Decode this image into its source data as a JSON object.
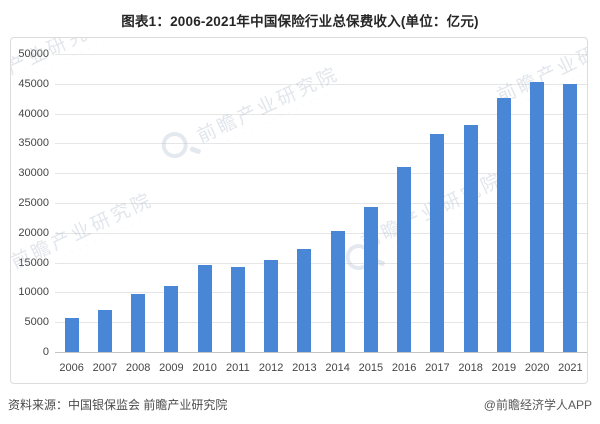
{
  "title": "图表1：2006-2021年中国保险行业总保费收入(单位：亿元)",
  "watermark": {
    "text": "前瞻产业研究院",
    "subtext": "· · · · · · · · · · · · · · ·"
  },
  "footer": {
    "source": "资料来源：中国银保监会 前瞻产业研究院",
    "attribution": "@前瞻经济学人APP"
  },
  "colors": {
    "bar": "#4a86d6",
    "grid": "#e6e6e6",
    "axis": "#c4c4c4",
    "tick_text": "#454545",
    "title_text": "#262626"
  },
  "chart_data": {
    "type": "bar",
    "title": "图表1：2006-2021年中国保险行业总保费收入(单位：亿元)",
    "categories": [
      "2006",
      "2007",
      "2008",
      "2009",
      "2010",
      "2011",
      "2012",
      "2013",
      "2014",
      "2015",
      "2016",
      "2017",
      "2018",
      "2019",
      "2020",
      "2021"
    ],
    "values": [
      5641,
      7036,
      9784,
      11137,
      14528,
      14339,
      15488,
      17222,
      20235,
      24283,
      30959,
      36581,
      38017,
      42645,
      45257,
      44900
    ],
    "xlabel": "",
    "ylabel": "",
    "ylim": [
      0,
      50000
    ],
    "y_ticks": [
      0,
      5000,
      10000,
      15000,
      20000,
      25000,
      30000,
      35000,
      40000,
      45000,
      50000
    ],
    "grid": true,
    "legend": false,
    "unit": "亿元"
  }
}
